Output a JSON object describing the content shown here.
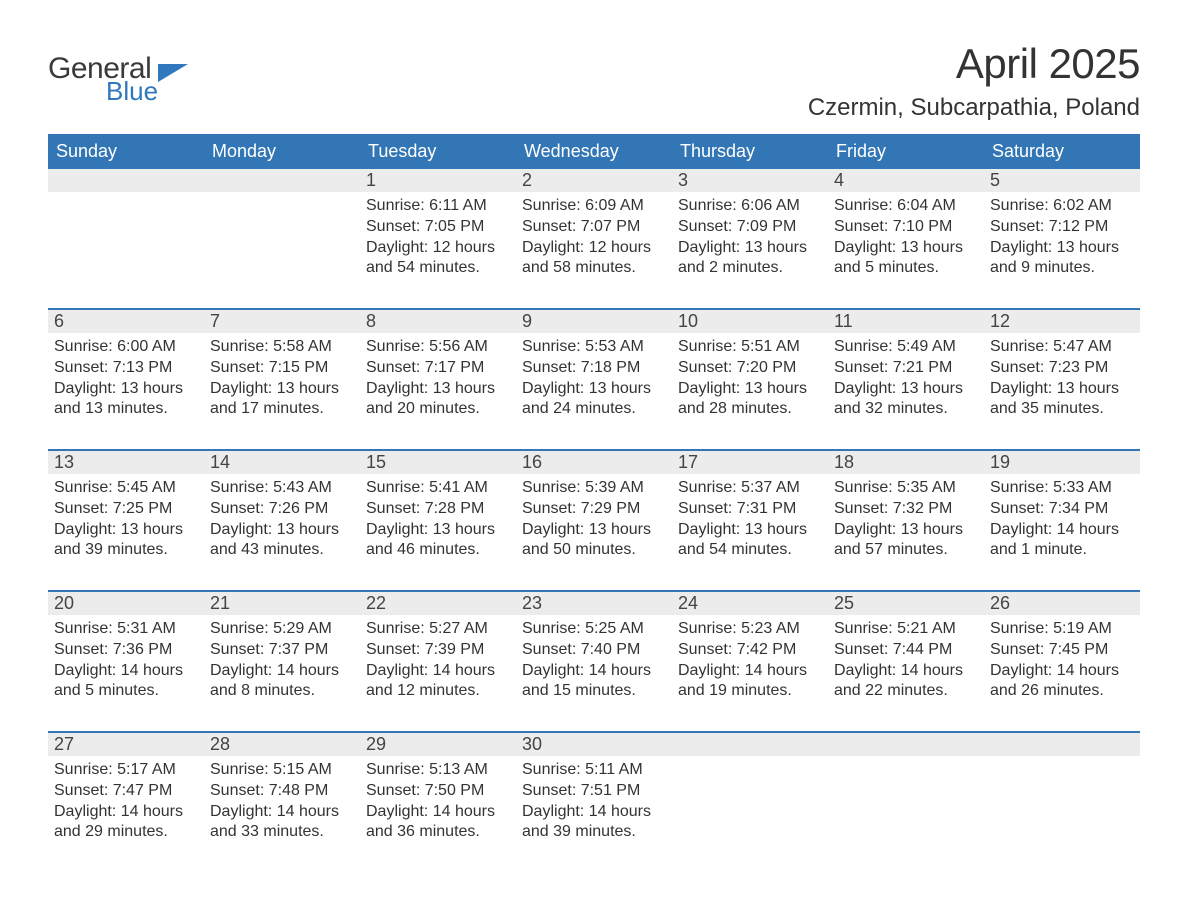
{
  "logo": {
    "line1": "General",
    "line2": "Blue"
  },
  "title": "April 2025",
  "location": "Czermin, Subcarpathia, Poland",
  "colors": {
    "header_bg": "#3276b6",
    "header_text": "#ffffff",
    "num_bg": "#ececec",
    "week_border": "#3276b6",
    "logo_blue": "#2f78bd",
    "text": "#333333"
  },
  "day_names": [
    "Sunday",
    "Monday",
    "Tuesday",
    "Wednesday",
    "Thursday",
    "Friday",
    "Saturday"
  ],
  "weeks": [
    [
      {
        "n": "",
        "sunrise": "",
        "sunset": "",
        "daylight": ""
      },
      {
        "n": "",
        "sunrise": "",
        "sunset": "",
        "daylight": ""
      },
      {
        "n": "1",
        "sunrise": "Sunrise: 6:11 AM",
        "sunset": "Sunset: 7:05 PM",
        "daylight": "Daylight: 12 hours and 54 minutes."
      },
      {
        "n": "2",
        "sunrise": "Sunrise: 6:09 AM",
        "sunset": "Sunset: 7:07 PM",
        "daylight": "Daylight: 12 hours and 58 minutes."
      },
      {
        "n": "3",
        "sunrise": "Sunrise: 6:06 AM",
        "sunset": "Sunset: 7:09 PM",
        "daylight": "Daylight: 13 hours and 2 minutes."
      },
      {
        "n": "4",
        "sunrise": "Sunrise: 6:04 AM",
        "sunset": "Sunset: 7:10 PM",
        "daylight": "Daylight: 13 hours and 5 minutes."
      },
      {
        "n": "5",
        "sunrise": "Sunrise: 6:02 AM",
        "sunset": "Sunset: 7:12 PM",
        "daylight": "Daylight: 13 hours and 9 minutes."
      }
    ],
    [
      {
        "n": "6",
        "sunrise": "Sunrise: 6:00 AM",
        "sunset": "Sunset: 7:13 PM",
        "daylight": "Daylight: 13 hours and 13 minutes."
      },
      {
        "n": "7",
        "sunrise": "Sunrise: 5:58 AM",
        "sunset": "Sunset: 7:15 PM",
        "daylight": "Daylight: 13 hours and 17 minutes."
      },
      {
        "n": "8",
        "sunrise": "Sunrise: 5:56 AM",
        "sunset": "Sunset: 7:17 PM",
        "daylight": "Daylight: 13 hours and 20 minutes."
      },
      {
        "n": "9",
        "sunrise": "Sunrise: 5:53 AM",
        "sunset": "Sunset: 7:18 PM",
        "daylight": "Daylight: 13 hours and 24 minutes."
      },
      {
        "n": "10",
        "sunrise": "Sunrise: 5:51 AM",
        "sunset": "Sunset: 7:20 PM",
        "daylight": "Daylight: 13 hours and 28 minutes."
      },
      {
        "n": "11",
        "sunrise": "Sunrise: 5:49 AM",
        "sunset": "Sunset: 7:21 PM",
        "daylight": "Daylight: 13 hours and 32 minutes."
      },
      {
        "n": "12",
        "sunrise": "Sunrise: 5:47 AM",
        "sunset": "Sunset: 7:23 PM",
        "daylight": "Daylight: 13 hours and 35 minutes."
      }
    ],
    [
      {
        "n": "13",
        "sunrise": "Sunrise: 5:45 AM",
        "sunset": "Sunset: 7:25 PM",
        "daylight": "Daylight: 13 hours and 39 minutes."
      },
      {
        "n": "14",
        "sunrise": "Sunrise: 5:43 AM",
        "sunset": "Sunset: 7:26 PM",
        "daylight": "Daylight: 13 hours and 43 minutes."
      },
      {
        "n": "15",
        "sunrise": "Sunrise: 5:41 AM",
        "sunset": "Sunset: 7:28 PM",
        "daylight": "Daylight: 13 hours and 46 minutes."
      },
      {
        "n": "16",
        "sunrise": "Sunrise: 5:39 AM",
        "sunset": "Sunset: 7:29 PM",
        "daylight": "Daylight: 13 hours and 50 minutes."
      },
      {
        "n": "17",
        "sunrise": "Sunrise: 5:37 AM",
        "sunset": "Sunset: 7:31 PM",
        "daylight": "Daylight: 13 hours and 54 minutes."
      },
      {
        "n": "18",
        "sunrise": "Sunrise: 5:35 AM",
        "sunset": "Sunset: 7:32 PM",
        "daylight": "Daylight: 13 hours and 57 minutes."
      },
      {
        "n": "19",
        "sunrise": "Sunrise: 5:33 AM",
        "sunset": "Sunset: 7:34 PM",
        "daylight": "Daylight: 14 hours and 1 minute."
      }
    ],
    [
      {
        "n": "20",
        "sunrise": "Sunrise: 5:31 AM",
        "sunset": "Sunset: 7:36 PM",
        "daylight": "Daylight: 14 hours and 5 minutes."
      },
      {
        "n": "21",
        "sunrise": "Sunrise: 5:29 AM",
        "sunset": "Sunset: 7:37 PM",
        "daylight": "Daylight: 14 hours and 8 minutes."
      },
      {
        "n": "22",
        "sunrise": "Sunrise: 5:27 AM",
        "sunset": "Sunset: 7:39 PM",
        "daylight": "Daylight: 14 hours and 12 minutes."
      },
      {
        "n": "23",
        "sunrise": "Sunrise: 5:25 AM",
        "sunset": "Sunset: 7:40 PM",
        "daylight": "Daylight: 14 hours and 15 minutes."
      },
      {
        "n": "24",
        "sunrise": "Sunrise: 5:23 AM",
        "sunset": "Sunset: 7:42 PM",
        "daylight": "Daylight: 14 hours and 19 minutes."
      },
      {
        "n": "25",
        "sunrise": "Sunrise: 5:21 AM",
        "sunset": "Sunset: 7:44 PM",
        "daylight": "Daylight: 14 hours and 22 minutes."
      },
      {
        "n": "26",
        "sunrise": "Sunrise: 5:19 AM",
        "sunset": "Sunset: 7:45 PM",
        "daylight": "Daylight: 14 hours and 26 minutes."
      }
    ],
    [
      {
        "n": "27",
        "sunrise": "Sunrise: 5:17 AM",
        "sunset": "Sunset: 7:47 PM",
        "daylight": "Daylight: 14 hours and 29 minutes."
      },
      {
        "n": "28",
        "sunrise": "Sunrise: 5:15 AM",
        "sunset": "Sunset: 7:48 PM",
        "daylight": "Daylight: 14 hours and 33 minutes."
      },
      {
        "n": "29",
        "sunrise": "Sunrise: 5:13 AM",
        "sunset": "Sunset: 7:50 PM",
        "daylight": "Daylight: 14 hours and 36 minutes."
      },
      {
        "n": "30",
        "sunrise": "Sunrise: 5:11 AM",
        "sunset": "Sunset: 7:51 PM",
        "daylight": "Daylight: 14 hours and 39 minutes."
      },
      {
        "n": "",
        "sunrise": "",
        "sunset": "",
        "daylight": ""
      },
      {
        "n": "",
        "sunrise": "",
        "sunset": "",
        "daylight": ""
      },
      {
        "n": "",
        "sunrise": "",
        "sunset": "",
        "daylight": ""
      }
    ]
  ]
}
